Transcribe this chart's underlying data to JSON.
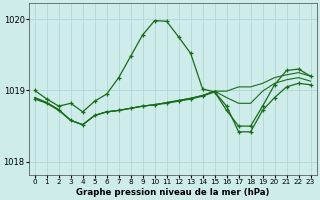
{
  "title": "Graphe pression niveau de la mer (hPa)",
  "bg_color": "#cdecea",
  "grid_color": "#b0d8d5",
  "line_color": "#1a6b1a",
  "ylim": [
    1017.82,
    1020.22
  ],
  "yticks": [
    1018,
    1019,
    1020
  ],
  "ytick_labels": [
    "1018",
    "1019",
    "1020"
  ],
  "x_ticks": [
    0,
    1,
    2,
    3,
    4,
    5,
    6,
    7,
    8,
    9,
    10,
    11,
    12,
    13,
    14,
    15,
    16,
    17,
    18,
    19,
    20,
    21,
    22,
    23
  ],
  "line1": [
    1019.0,
    1018.88,
    1018.78,
    1018.82,
    1018.7,
    1018.85,
    1018.95,
    1019.18,
    1019.48,
    1019.78,
    1019.98,
    1019.97,
    1019.75,
    1019.52,
    1019.02,
    1018.98,
    1018.72,
    1018.5,
    1018.5,
    1018.78,
    1019.08,
    1019.28,
    1019.3,
    1019.2
  ],
  "line2": [
    1018.88,
    1018.82,
    1018.72,
    1018.58,
    1018.52,
    1018.65,
    1018.7,
    1018.72,
    1018.75,
    1018.78,
    1018.8,
    1018.82,
    1018.85,
    1018.88,
    1018.92,
    1018.98,
    1018.78,
    1018.42,
    1018.42,
    1018.72,
    1018.9,
    1019.05,
    1019.1,
    1019.08
  ],
  "line3": [
    1018.9,
    1018.83,
    1018.73,
    1018.58,
    1018.52,
    1018.65,
    1018.7,
    1018.72,
    1018.75,
    1018.78,
    1018.8,
    1018.83,
    1018.86,
    1018.89,
    1018.93,
    1018.99,
    1018.9,
    1018.82,
    1018.82,
    1018.99,
    1019.1,
    1019.15,
    1019.18,
    1019.13
  ],
  "line4": [
    1018.9,
    1018.83,
    1018.73,
    1018.58,
    1018.52,
    1018.65,
    1018.7,
    1018.72,
    1018.75,
    1018.78,
    1018.8,
    1018.83,
    1018.86,
    1018.89,
    1018.93,
    1018.99,
    1018.99,
    1019.05,
    1019.05,
    1019.1,
    1019.18,
    1019.22,
    1019.25,
    1019.2
  ]
}
